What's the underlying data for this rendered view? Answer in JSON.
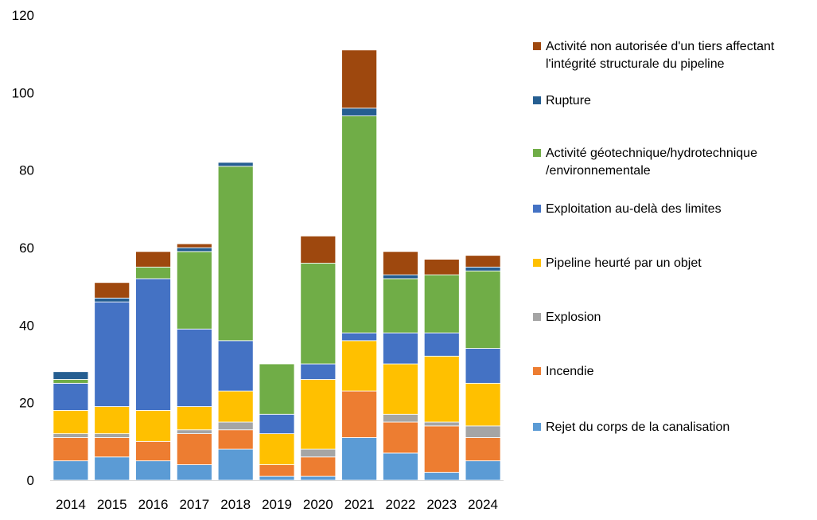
{
  "chart_data": {
    "type": "bar",
    "stacked": true,
    "title": "",
    "xlabel": "",
    "ylabel": "",
    "ylim": [
      0,
      120
    ],
    "yticks": [
      0,
      20,
      40,
      60,
      80,
      100,
      120
    ],
    "grid": false,
    "legend_position": "right",
    "categories": [
      "2014",
      "2015",
      "2016",
      "2017",
      "2018",
      "2019",
      "2020",
      "2021",
      "2022",
      "2023",
      "2024"
    ],
    "series": [
      {
        "name": "Rejet du corps de la canalisation",
        "color": "#5B9BD5",
        "values": [
          5,
          6,
          5,
          4,
          8,
          1,
          1,
          11,
          7,
          2,
          5
        ]
      },
      {
        "name": "Incendie",
        "color": "#ED7D31",
        "values": [
          6,
          5,
          5,
          8,
          5,
          3,
          5,
          12,
          8,
          12,
          6
        ]
      },
      {
        "name": "Explosion",
        "color": "#A5A5A5",
        "values": [
          1,
          1,
          0,
          1,
          2,
          0,
          2,
          0,
          2,
          1,
          3
        ]
      },
      {
        "name": "Pipeline heurté par un objet",
        "color": "#FFC000",
        "values": [
          6,
          7,
          8,
          6,
          8,
          8,
          18,
          13,
          13,
          17,
          11
        ]
      },
      {
        "name": "Exploitation au-delà des limites",
        "color": "#4472C4",
        "values": [
          7,
          27,
          34,
          20,
          13,
          5,
          4,
          2,
          8,
          6,
          9
        ]
      },
      {
        "name": "Activité géotechnique/hydrotechnique /environnementale",
        "color": "#70AD47",
        "values": [
          1,
          0,
          3,
          20,
          45,
          13,
          26,
          56,
          14,
          15,
          20
        ]
      },
      {
        "name": "Rupture",
        "color": "#255E91",
        "values": [
          2,
          1,
          0,
          1,
          1,
          0,
          0,
          2,
          1,
          0,
          1
        ]
      },
      {
        "name": "Activité non autorisée d'un tiers affectant l'intégrité structurale du pipeline",
        "color": "#9E480E",
        "values": [
          0,
          4,
          4,
          1,
          0,
          0,
          7,
          15,
          6,
          4,
          3
        ]
      }
    ]
  }
}
